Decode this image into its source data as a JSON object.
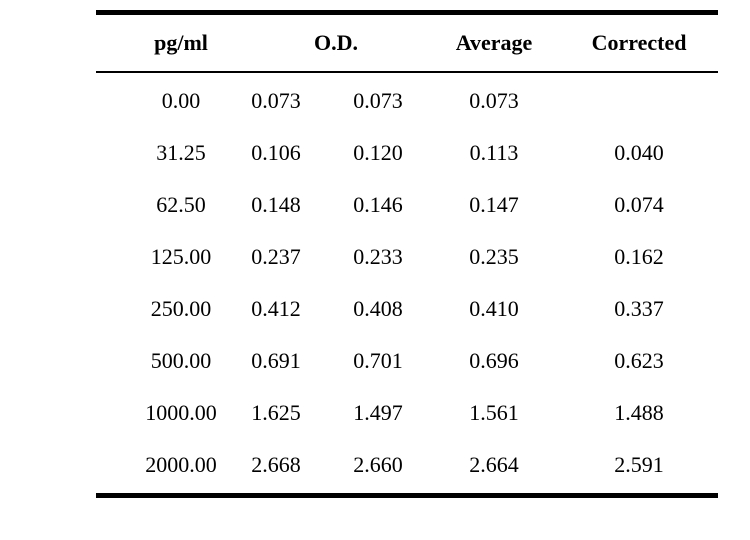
{
  "table": {
    "headers": {
      "pg": "pg/ml",
      "od": "O.D.",
      "average": "Average",
      "corrected": "Corrected"
    },
    "rows": [
      {
        "pg": "0.00",
        "od1": "0.073",
        "od2": "0.073",
        "average": "0.073",
        "corrected": ""
      },
      {
        "pg": "31.25",
        "od1": "0.106",
        "od2": "0.120",
        "average": "0.113",
        "corrected": "0.040"
      },
      {
        "pg": "62.50",
        "od1": "0.148",
        "od2": "0.146",
        "average": "0.147",
        "corrected": "0.074"
      },
      {
        "pg": "125.00",
        "od1": "0.237",
        "od2": "0.233",
        "average": "0.235",
        "corrected": "0.162"
      },
      {
        "pg": "250.00",
        "od1": "0.412",
        "od2": "0.408",
        "average": "0.410",
        "corrected": "0.337"
      },
      {
        "pg": "500.00",
        "od1": "0.691",
        "od2": "0.701",
        "average": "0.696",
        "corrected": "0.623"
      },
      {
        "pg": "1000.00",
        "od1": "1.625",
        "od2": "1.497",
        "average": "1.561",
        "corrected": "1.488"
      },
      {
        "pg": "2000.00",
        "od1": "2.668",
        "od2": "2.660",
        "average": "2.664",
        "corrected": "2.591"
      }
    ]
  }
}
